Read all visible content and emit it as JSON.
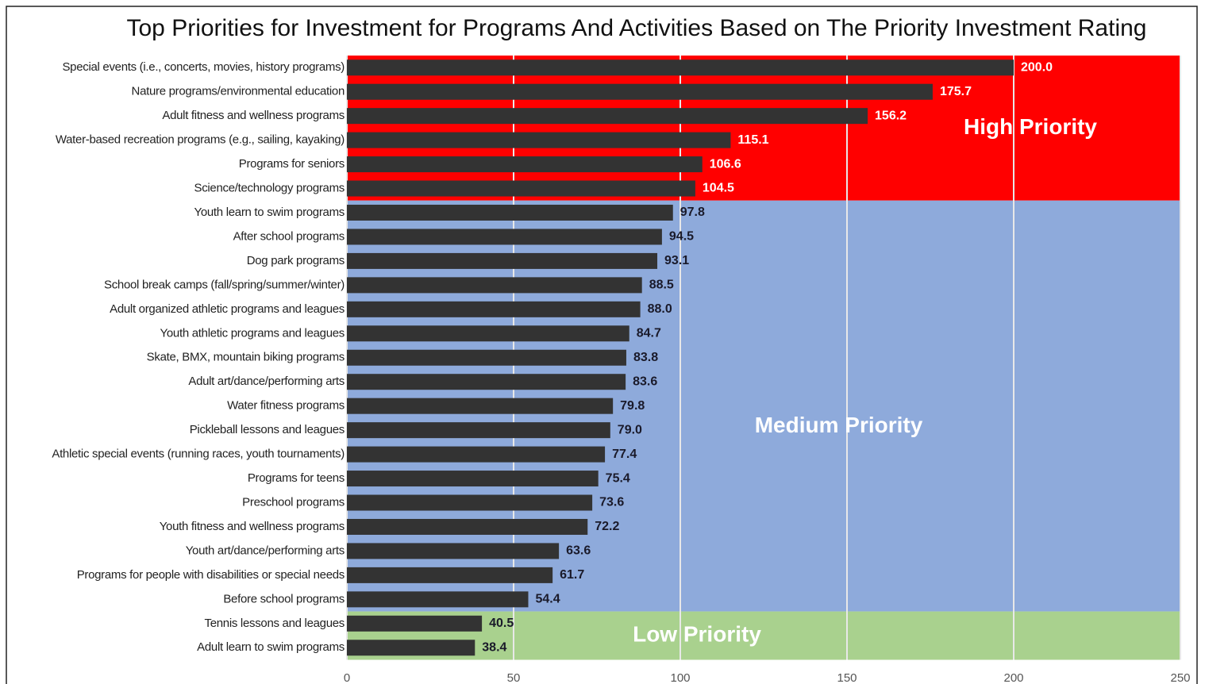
{
  "chart_data": {
    "type": "bar",
    "orientation": "horizontal",
    "title": "Top Priorities for Investment for Programs And Activities Based on The Priority Investment Rating",
    "categories": [
      "Special events (i.e., concerts, movies, history programs)",
      "Nature programs/environmental education",
      "Adult fitness and wellness programs",
      "Water-based recreation programs (e.g., sailing, kayaking)",
      "Programs for seniors",
      "Science/technology programs",
      "Youth learn to swim programs",
      "After school programs",
      "Dog park programs",
      "School break camps (fall/spring/summer/winter)",
      "Adult organized athletic programs and leagues",
      "Youth athletic programs and leagues",
      "Skate, BMX, mountain biking programs",
      "Adult art/dance/performing arts",
      "Water fitness programs",
      "Pickleball lessons and leagues",
      "Athletic special events (running races, youth tournaments)",
      "Programs for teens",
      "Preschool programs",
      "Youth fitness and wellness programs",
      "Youth art/dance/performing arts",
      "Programs for people with disabilities or special needs",
      "Before school programs",
      "Tennis lessons and leagues",
      "Adult learn to swim programs"
    ],
    "values": [
      200.0,
      175.7,
      156.2,
      115.1,
      106.6,
      104.5,
      97.8,
      94.5,
      93.1,
      88.5,
      88.0,
      84.7,
      83.8,
      83.6,
      79.8,
      79.0,
      77.4,
      75.4,
      73.6,
      72.2,
      63.6,
      61.7,
      54.4,
      40.5,
      38.4
    ],
    "value_labels": [
      "200.0",
      "175.7",
      "156.2",
      "115.1",
      "106.6",
      "104.5",
      "97.8",
      "94.5",
      "93.1",
      "88.5",
      "88.0",
      "84.7",
      "83.8",
      "83.6",
      "79.8",
      "79.0",
      "77.4",
      "75.4",
      "73.6",
      "72.2",
      "63.6",
      "61.7",
      "54.4",
      "40.5",
      "38.4"
    ],
    "color": "#333333",
    "xlim": [
      0,
      250
    ],
    "xticks": [
      0,
      50,
      100,
      150,
      200,
      250
    ],
    "grid": true,
    "bands": [
      {
        "label": "High Priority",
        "color": "#ff0000",
        "count": 6
      },
      {
        "label": "Medium Priority",
        "color": "#8eaadb",
        "count": 17
      },
      {
        "label": "Low Priority",
        "color": "#a9d18e",
        "count": 2
      }
    ]
  }
}
